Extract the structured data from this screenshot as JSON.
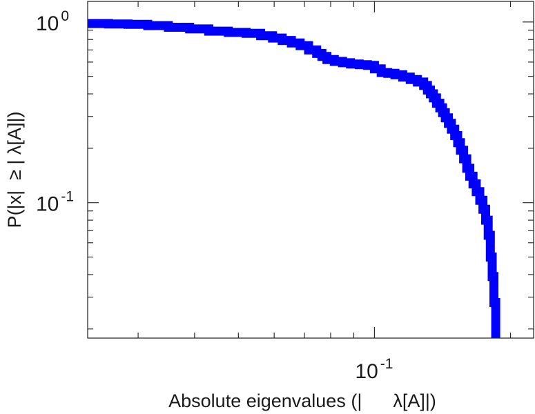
{
  "chart_data": {
    "type": "line",
    "step": true,
    "title": "",
    "xlabel": "Absolute eigenvalues (|      λ[A]|)",
    "ylabel": "P(|x|  ≥ | λ[A]|)",
    "xscale": "log",
    "yscale": "log",
    "xlim": [
      0.0232,
      0.225
    ],
    "ylim": [
      0.0178,
      1.3
    ],
    "grid": false,
    "legend": "none",
    "line_color": "#0000ff",
    "x_ticks": [
      {
        "base": "10",
        "exp": "-1",
        "value": 0.1
      }
    ],
    "y_ticks": [
      {
        "base": "10",
        "exp": "0",
        "value": 1
      },
      {
        "base": "10",
        "exp": "-1",
        "value": 0.1
      }
    ],
    "series": [
      {
        "x": [
          0.0232,
          0.0258,
          0.0285,
          0.0315,
          0.035,
          0.039,
          0.043,
          0.0475,
          0.052,
          0.056,
          0.0595,
          0.0625,
          0.0655,
          0.0685,
          0.0715,
          0.0745,
          0.0765,
          0.0785,
          0.0815,
          0.085,
          0.0885,
          0.0925,
          0.0965,
          0.1,
          0.1035,
          0.107,
          0.111,
          0.1155,
          0.12,
          0.1245,
          0.1285,
          0.131,
          0.133,
          0.135,
          0.1372,
          0.1395,
          0.1415,
          0.1435,
          0.1458,
          0.148,
          0.1505,
          0.1528,
          0.155,
          0.1575,
          0.16,
          0.1625,
          0.1652,
          0.168,
          0.171,
          0.1738,
          0.1762,
          0.1785,
          0.1805,
          0.1822,
          0.1838,
          0.1855
        ],
        "y": [
          0.98,
          0.975,
          0.97,
          0.955,
          0.935,
          0.915,
          0.89,
          0.875,
          0.865,
          0.84,
          0.815,
          0.79,
          0.765,
          0.74,
          0.7,
          0.67,
          0.645,
          0.62,
          0.605,
          0.595,
          0.585,
          0.58,
          0.575,
          0.55,
          0.525,
          0.52,
          0.51,
          0.495,
          0.48,
          0.465,
          0.445,
          0.42,
          0.4,
          0.38,
          0.355,
          0.335,
          0.315,
          0.295,
          0.275,
          0.255,
          0.235,
          0.215,
          0.195,
          0.175,
          0.155,
          0.14,
          0.127,
          0.115,
          0.103,
          0.092,
          0.08,
          0.066,
          0.05,
          0.039,
          0.028,
          0.018
        ]
      }
    ]
  }
}
